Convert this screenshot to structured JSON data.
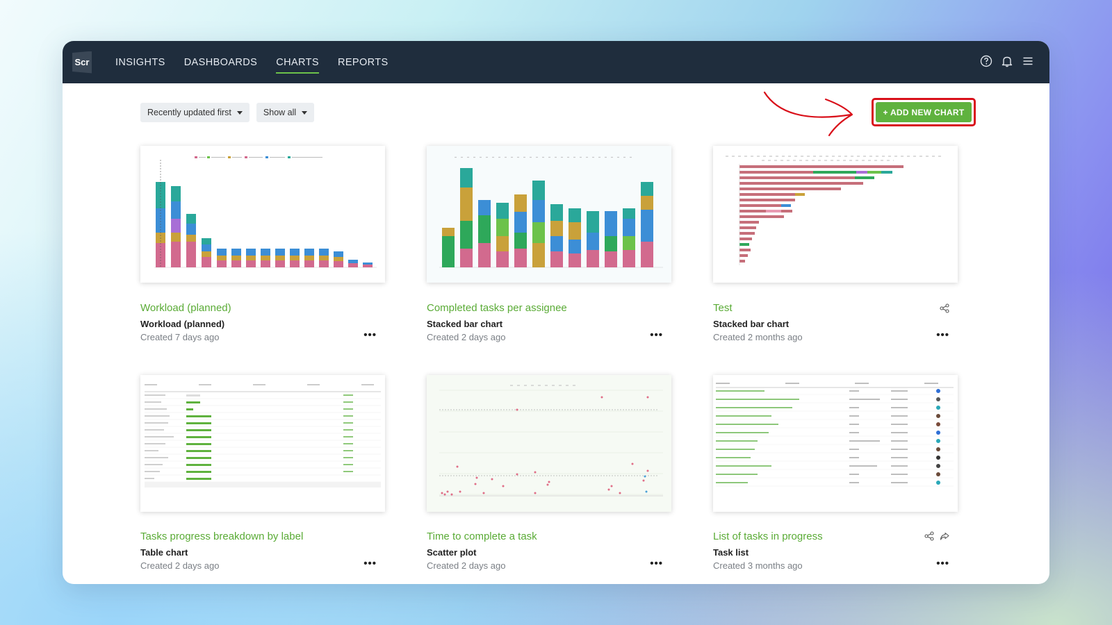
{
  "app": {
    "logo_text": "Scr"
  },
  "nav": {
    "items": [
      "INSIGHTS",
      "DASHBOARDS",
      "CHARTS",
      "REPORTS"
    ],
    "active": "CHARTS"
  },
  "filters": {
    "sort_label": "Recently updated first",
    "show_label": "Show all"
  },
  "actions": {
    "add_label": "+ ADD NEW CHART"
  },
  "colors": {
    "accent": "#5fb23e",
    "topbar": "#1f2d3d",
    "highlight": "#d9101a"
  },
  "charts": [
    {
      "title": "Workload (planned)",
      "type": "Workload (planned)",
      "created": "Created 7 days ago",
      "icons": []
    },
    {
      "title": "Completed tasks per assignee",
      "type": "Stacked bar chart",
      "created": "Created 2 days ago",
      "icons": []
    },
    {
      "title": "Test",
      "type": "Stacked bar chart",
      "created": "Created 2 months ago",
      "icons": [
        "share-icon"
      ]
    },
    {
      "title": "Tasks progress breakdown by label",
      "type": "Table chart",
      "created": "Created 2 days ago",
      "icons": []
    },
    {
      "title": "Time to complete a task",
      "type": "Scatter plot",
      "created": "Created 2 days ago",
      "icons": []
    },
    {
      "title": "List of tasks in progress",
      "type": "Task list",
      "created": "Created 3 months ago",
      "icons": [
        "share-icon",
        "forward-icon"
      ]
    }
  ],
  "more_label": "•••"
}
